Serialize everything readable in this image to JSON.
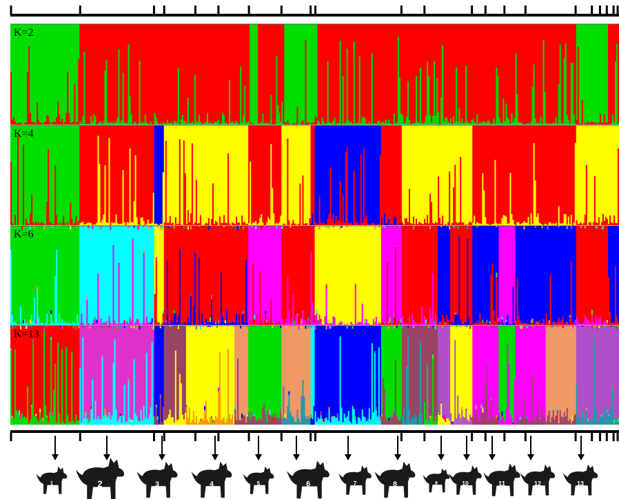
{
  "chart_data": {
    "type": "stacked-bar",
    "n_individuals": 440,
    "group_boundaries": [
      0,
      103,
      212,
      227,
      273,
      307,
      352,
      400,
      443,
      450,
      577,
      611,
      681,
      701,
      729,
      760,
      834,
      858,
      870,
      880,
      890,
      898
    ],
    "colors": {
      "green": "#00dd00",
      "red": "#ff0000",
      "blue": "#0000ff",
      "yellow": "#ffff00",
      "cyan": "#00ffff",
      "magenta": "#ff00ff",
      "pink": "#dd33cc",
      "mauve": "#994466",
      "salmon": "#ee9966",
      "orange": "#ff9900",
      "violet": "#b050c8",
      "teal": "#2299aa",
      "lime": "#33ff33"
    },
    "panels": [
      {
        "label": "K=2",
        "segments": [
          {
            "from": 0,
            "to": 103,
            "color": "green",
            "noise": "red"
          },
          {
            "from": 103,
            "to": 353,
            "color": "red",
            "noise": "green"
          },
          {
            "from": 353,
            "to": 365,
            "color": "green",
            "noise": "red"
          },
          {
            "from": 365,
            "to": 405,
            "color": "red",
            "noise": "green"
          },
          {
            "from": 405,
            "to": 453,
            "color": "green",
            "noise": "red"
          },
          {
            "from": 453,
            "to": 834,
            "color": "red",
            "noise": "green"
          },
          {
            "from": 834,
            "to": 882,
            "color": "green",
            "noise": "red"
          },
          {
            "from": 882,
            "to": 898,
            "color": "red",
            "noise": "green"
          }
        ]
      },
      {
        "label": "K=4",
        "segments": [
          {
            "from": 0,
            "to": 103,
            "color": "green",
            "noise": "red"
          },
          {
            "from": 103,
            "to": 212,
            "color": "red",
            "noise": "yellow"
          },
          {
            "from": 212,
            "to": 227,
            "color": "blue",
            "noise": "yellow"
          },
          {
            "from": 227,
            "to": 352,
            "color": "yellow",
            "noise": "red"
          },
          {
            "from": 352,
            "to": 400,
            "color": "red",
            "noise": "yellow"
          },
          {
            "from": 400,
            "to": 443,
            "color": "yellow",
            "noise": "red"
          },
          {
            "from": 443,
            "to": 450,
            "color": "red",
            "noise": "blue"
          },
          {
            "from": 450,
            "to": 547,
            "color": "blue",
            "noise": "red"
          },
          {
            "from": 547,
            "to": 577,
            "color": "red",
            "noise": "blue"
          },
          {
            "from": 577,
            "to": 681,
            "color": "yellow",
            "noise": "red"
          },
          {
            "from": 681,
            "to": 834,
            "color": "red",
            "noise": "yellow"
          },
          {
            "from": 834,
            "to": 898,
            "color": "yellow",
            "noise": "red"
          }
        ]
      },
      {
        "label": "K=6",
        "segments": [
          {
            "from": 0,
            "to": 103,
            "color": "green",
            "noise": "cyan"
          },
          {
            "from": 103,
            "to": 212,
            "color": "cyan",
            "noise": "magenta"
          },
          {
            "from": 212,
            "to": 227,
            "color": "yellow",
            "noise": "red"
          },
          {
            "from": 227,
            "to": 352,
            "color": "red",
            "noise": "blue"
          },
          {
            "from": 352,
            "to": 400,
            "color": "magenta",
            "noise": "red"
          },
          {
            "from": 400,
            "to": 450,
            "color": "red",
            "noise": "magenta"
          },
          {
            "from": 450,
            "to": 547,
            "color": "yellow",
            "noise": "magenta"
          },
          {
            "from": 547,
            "to": 577,
            "color": "magenta",
            "noise": "red"
          },
          {
            "from": 577,
            "to": 630,
            "color": "red",
            "noise": "magenta"
          },
          {
            "from": 630,
            "to": 650,
            "color": "blue",
            "noise": "red"
          },
          {
            "from": 650,
            "to": 681,
            "color": "red",
            "noise": "blue"
          },
          {
            "from": 681,
            "to": 720,
            "color": "blue",
            "noise": "red"
          },
          {
            "from": 720,
            "to": 745,
            "color": "magenta",
            "noise": "blue"
          },
          {
            "from": 745,
            "to": 834,
            "color": "blue",
            "noise": "red"
          },
          {
            "from": 834,
            "to": 882,
            "color": "red",
            "noise": "magenta"
          },
          {
            "from": 882,
            "to": 898,
            "color": "blue",
            "noise": "red"
          }
        ]
      },
      {
        "label": "K=13",
        "segments": [
          {
            "from": 0,
            "to": 103,
            "color": "red",
            "noise": "green"
          },
          {
            "from": 103,
            "to": 212,
            "color": "pink",
            "noise": "cyan"
          },
          {
            "from": 212,
            "to": 227,
            "color": "blue",
            "noise": "mauve"
          },
          {
            "from": 227,
            "to": 260,
            "color": "mauve",
            "noise": "yellow"
          },
          {
            "from": 260,
            "to": 330,
            "color": "yellow",
            "noise": "orange"
          },
          {
            "from": 330,
            "to": 352,
            "color": "salmon",
            "noise": "mauve"
          },
          {
            "from": 352,
            "to": 400,
            "color": "green",
            "noise": "mauve"
          },
          {
            "from": 400,
            "to": 443,
            "color": "salmon",
            "noise": "teal"
          },
          {
            "from": 443,
            "to": 450,
            "color": "cyan",
            "noise": "blue"
          },
          {
            "from": 450,
            "to": 547,
            "color": "blue",
            "noise": "cyan"
          },
          {
            "from": 547,
            "to": 577,
            "color": "green",
            "noise": "mauve"
          },
          {
            "from": 577,
            "to": 611,
            "color": "mauve",
            "noise": "teal"
          },
          {
            "from": 611,
            "to": 631,
            "color": "mauve",
            "noise": "green"
          },
          {
            "from": 631,
            "to": 650,
            "color": "violet",
            "noise": "yellow"
          },
          {
            "from": 650,
            "to": 681,
            "color": "yellow",
            "noise": "violet"
          },
          {
            "from": 681,
            "to": 720,
            "color": "magenta",
            "noise": "mauve"
          },
          {
            "from": 720,
            "to": 745,
            "color": "green",
            "noise": "magenta"
          },
          {
            "from": 745,
            "to": 790,
            "color": "magenta",
            "noise": "mauve"
          },
          {
            "from": 790,
            "to": 834,
            "color": "salmon",
            "noise": "mauve"
          },
          {
            "from": 834,
            "to": 898,
            "color": "violet",
            "noise": "teal"
          }
        ]
      }
    ],
    "breeds": [
      {
        "number": "1",
        "icon": "dog-silhouette-icon",
        "arrow_x": 80,
        "icon_x": 75
      },
      {
        "number": "2",
        "icon": "dog-silhouette-icon",
        "arrow_x": 155,
        "icon_x": 145
      },
      {
        "number": "3",
        "icon": "dog-silhouette-icon",
        "arrow_x": 235,
        "icon_x": 228
      },
      {
        "number": "4",
        "icon": "dog-silhouette-icon",
        "arrow_x": 312,
        "icon_x": 307
      },
      {
        "number": "5",
        "icon": "dog-silhouette-icon",
        "arrow_x": 375,
        "icon_x": 375
      },
      {
        "number": "6",
        "icon": "dog-silhouette-icon",
        "arrow_x": 430,
        "icon_x": 447
      },
      {
        "number": "7",
        "icon": "dog-silhouette-icon",
        "arrow_x": 505,
        "icon_x": 515
      },
      {
        "number": "8",
        "icon": "dog-silhouette-icon",
        "arrow_x": 577,
        "icon_x": 573
      },
      {
        "number": "9",
        "icon": "dog-silhouette-icon",
        "arrow_x": 640,
        "icon_x": 633
      },
      {
        "number": "10",
        "icon": "dog-silhouette-icon",
        "arrow_x": 677,
        "icon_x": 675
      },
      {
        "number": "11",
        "icon": "dog-silhouette-icon",
        "arrow_x": 714,
        "icon_x": 728
      },
      {
        "number": "12",
        "icon": "dog-silhouette-icon",
        "arrow_x": 770,
        "icon_x": 780
      },
      {
        "number": "13",
        "icon": "dog-silhouette-icon",
        "arrow_x": 843,
        "icon_x": 842
      }
    ]
  }
}
